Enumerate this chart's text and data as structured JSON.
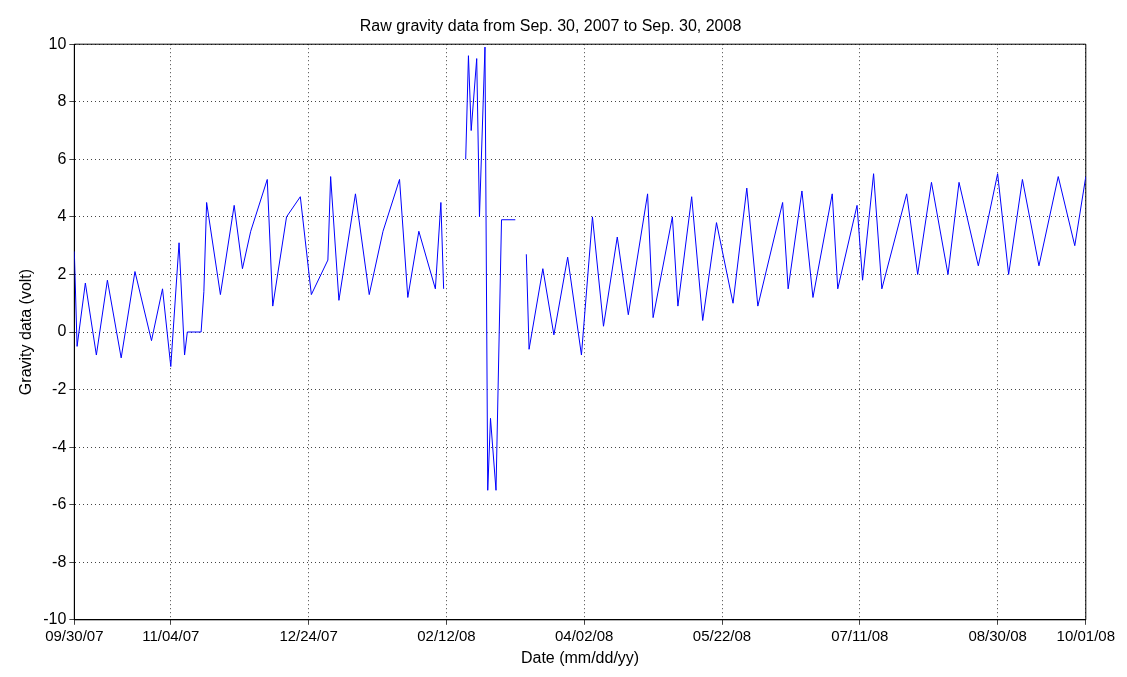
{
  "chart_data": {
    "type": "line",
    "title": "Raw gravity data from Sep. 30, 2007 to Sep. 30, 2008",
    "xlabel": "Date (mm/dd/yy)",
    "ylabel": "Gravity data (volt)",
    "x": [
      "2007-09-30",
      "2007-10-01",
      "2007-10-04",
      "2007-10-08",
      "2007-10-12",
      "2007-10-17",
      "2007-10-22",
      "2007-10-28",
      "2007-11-01",
      "2007-11-04",
      "2007-11-07",
      "2007-11-09",
      "2007-11-10",
      "2007-11-15",
      "2007-11-16",
      "2007-11-17",
      "2007-11-22",
      "2007-11-27",
      "2007-11-30",
      "2007-12-03",
      "2007-12-09",
      "2007-12-11",
      "2007-12-16",
      "2007-12-21",
      "2007-12-25",
      "2007-12-31",
      "2008-01-01",
      "2008-01-04",
      "2008-01-10",
      "2008-01-15",
      "2008-01-20",
      "2008-01-26",
      "2008-01-29",
      "2008-02-02",
      "2008-02-08",
      "2008-02-10",
      "2008-02-11",
      "2008-02-13",
      "2008-02-19",
      "2008-02-20",
      "2008-02-21",
      "2008-02-23",
      "2008-02-24",
      "2008-02-26",
      "2008-02-27",
      "2008-02-28",
      "2008-03-01",
      "2008-03-03",
      "2008-03-08",
      "2008-03-10",
      "2008-03-12",
      "2008-03-13",
      "2008-03-18",
      "2008-03-22",
      "2008-03-27",
      "2008-04-01",
      "2008-04-05",
      "2008-04-09",
      "2008-04-14",
      "2008-04-18",
      "2008-04-25",
      "2008-04-27",
      "2008-05-04",
      "2008-05-06",
      "2008-05-11",
      "2008-05-15",
      "2008-05-20",
      "2008-05-26",
      "2008-05-31",
      "2008-06-04",
      "2008-06-13",
      "2008-06-15",
      "2008-06-20",
      "2008-06-24",
      "2008-07-01",
      "2008-07-03",
      "2008-07-10",
      "2008-07-12",
      "2008-07-16",
      "2008-07-19",
      "2008-07-28",
      "2008-08-01",
      "2008-08-06",
      "2008-08-12",
      "2008-08-16",
      "2008-08-23",
      "2008-08-30",
      "2008-09-03",
      "2008-09-08",
      "2008-09-14",
      "2008-09-21",
      "2008-09-27",
      "2008-10-01"
    ],
    "series": [
      {
        "color": "#0000ff",
        "values": [
          2.8,
          -0.5,
          1.7,
          -0.8,
          1.8,
          -0.9,
          2.1,
          -0.3,
          1.5,
          -1.2,
          3.1,
          -0.8,
          0,
          0,
          1.4,
          4.5,
          1.3,
          4.4,
          2.2,
          3.5,
          5.3,
          0.9,
          4.0,
          4.7,
          1.3,
          2.5,
          5.4,
          1.1,
          4.8,
          1.3,
          3.5,
          5.3,
          1.2,
          3.5,
          1.5,
          4.5,
          1.5,
          null,
          6,
          9.6,
          7,
          9.5,
          4,
          9.9,
          -5.5,
          -3,
          -5.5,
          3.9,
          3.9,
          null,
          2.7,
          -0.6,
          2.2,
          -0.1,
          2.6,
          -0.8,
          4.0,
          0.2,
          3.3,
          0.6,
          4.8,
          0.5,
          4.0,
          0.9,
          4.7,
          0.4,
          3.8,
          1.0,
          5.0,
          0.9,
          4.5,
          1.5,
          4.9,
          1.2,
          4.8,
          1.5,
          4.4,
          1.8,
          5.5,
          1.5,
          4.8,
          2.0,
          5.2,
          2.0,
          5.2,
          2.3,
          5.5,
          2.0,
          5.3,
          2.3,
          5.4,
          3.0,
          5.4
        ]
      }
    ],
    "xlim": [
      "2007-09-30",
      "2008-10-01"
    ],
    "xticks": [
      {
        "value": "2007-09-30",
        "label": "09/30/07"
      },
      {
        "value": "2007-11-04",
        "label": "11/04/07"
      },
      {
        "value": "2007-12-24",
        "label": "12/24/07"
      },
      {
        "value": "2008-02-12",
        "label": "02/12/08"
      },
      {
        "value": "2008-04-02",
        "label": "04/02/08"
      },
      {
        "value": "2008-05-22",
        "label": "05/22/08"
      },
      {
        "value": "2008-07-11",
        "label": "07/11/08"
      },
      {
        "value": "2008-08-30",
        "label": "08/30/08"
      },
      {
        "value": "2008-10-01",
        "label": "10/01/08"
      }
    ],
    "ylim": [
      -10,
      10
    ],
    "yticks": [
      -10,
      -8,
      -6,
      -4,
      -2,
      0,
      2,
      4,
      6,
      8,
      10
    ],
    "grid": true,
    "marker": "none",
    "line_style": "solid",
    "legend": false
  }
}
